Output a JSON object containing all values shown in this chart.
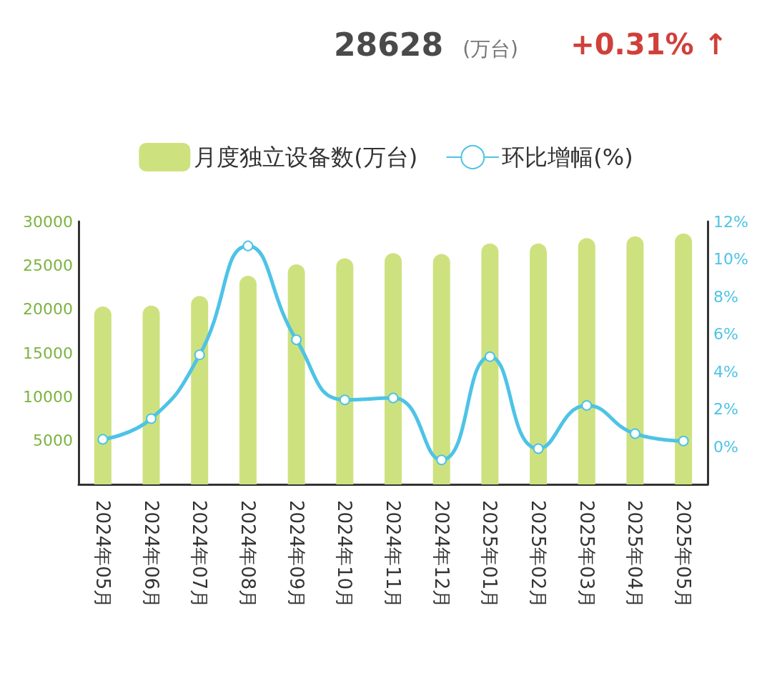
{
  "chart_data": {
    "type": "bar",
    "annotations": [
      "28628",
      "(万台)",
      "+0.31% ↑"
    ],
    "categories": [
      "2024年05月",
      "2024年06月",
      "2024年07月",
      "2024年08月",
      "2024年09月",
      "2024年10月",
      "2024年11月",
      "2024年12月",
      "2025年01月",
      "2025年02月",
      "2025年03月",
      "2025年04月",
      "2025年05月"
    ],
    "series": [
      {
        "name": "月度独立设备数(万台)",
        "color": "#cde27f",
        "values": [
          20300,
          20400,
          21500,
          23800,
          25100,
          25800,
          26400,
          26300,
          27500,
          27500,
          28100,
          28300,
          28628
        ]
      },
      {
        "name": "环比增幅(%)",
        "type": "line",
        "axis": "y2",
        "color": "#4ec3e6",
        "values": [
          0.4,
          1.5,
          4.9,
          10.7,
          5.7,
          2.5,
          2.6,
          -0.7,
          4.8,
          -0.1,
          2.2,
          0.7,
          0.31
        ]
      }
    ],
    "ylim": [
      0,
      30000
    ],
    "yticks": [
      5000,
      10000,
      15000,
      20000,
      25000,
      30000
    ],
    "y2lim": [
      -2,
      12
    ],
    "y2ticks": [
      {
        "value": 0,
        "label": "0%"
      },
      {
        "value": 2,
        "label": "2%"
      },
      {
        "value": 4,
        "label": "4%"
      },
      {
        "value": 6,
        "label": "6%"
      },
      {
        "value": 8,
        "label": "8%"
      },
      {
        "value": 10,
        "label": "10%"
      },
      {
        "value": 12,
        "label": "12%"
      }
    ],
    "grid": false,
    "legend": "top",
    "marker": "circle",
    "line_style": "solid"
  }
}
